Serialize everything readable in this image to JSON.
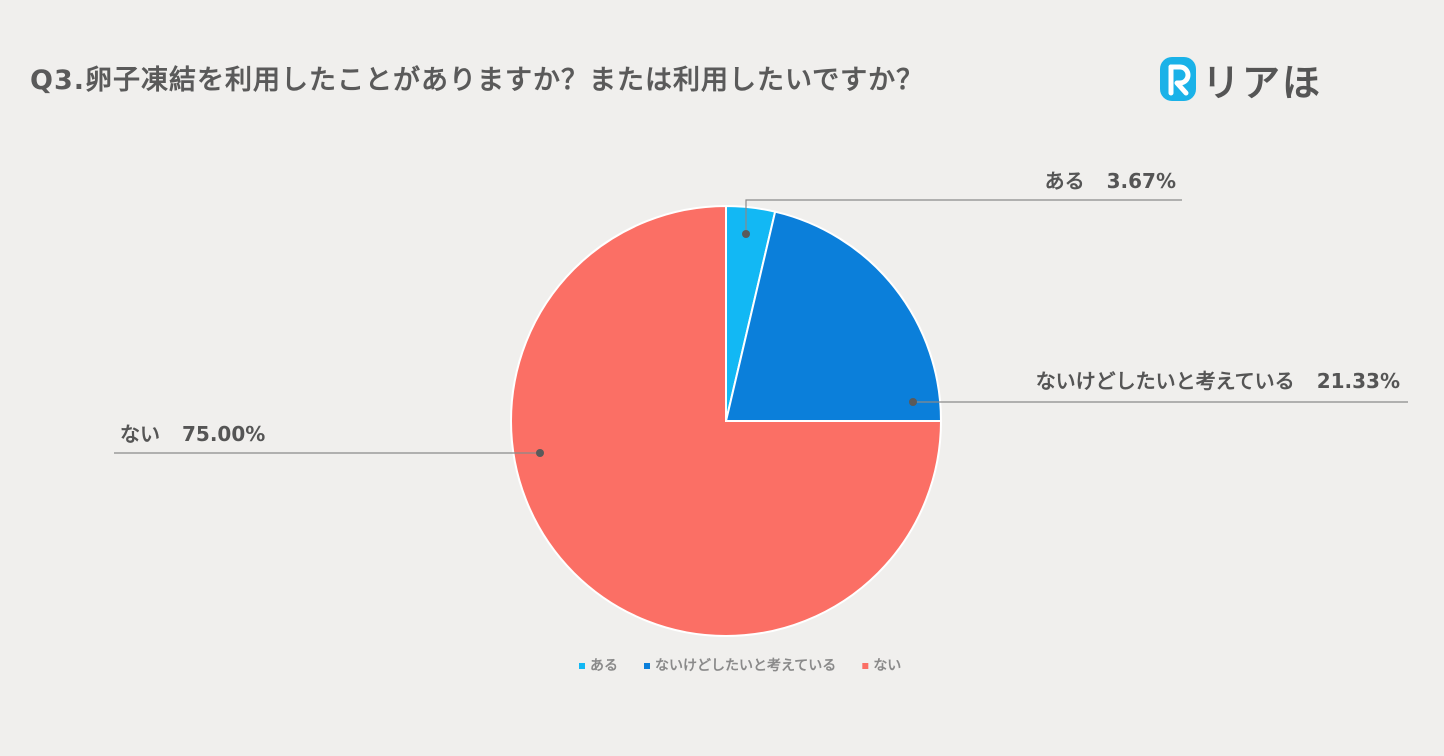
{
  "title": "Q3.卵子凍結を利用したことがありますか？または利用したいですか？",
  "logo": {
    "text": "リアほ",
    "mark": "R",
    "mark_color": "#1ab2e8"
  },
  "chart_data": {
    "type": "pie",
    "title": "Q3.卵子凍結を利用したことがありますか？または利用したいですか？",
    "start": "12 o'clock, clockwise",
    "legend": "bottom",
    "slices": [
      {
        "label": "ある",
        "value": 3.67,
        "display": "3.67%",
        "color": "#12b8f4"
      },
      {
        "label": "ないけどしたいと考えている",
        "value": 21.33,
        "display": "21.33%",
        "color": "#0b7fda"
      },
      {
        "label": "ない",
        "value": 75.0,
        "display": "75.00%",
        "color": "#fb6f65"
      }
    ]
  }
}
